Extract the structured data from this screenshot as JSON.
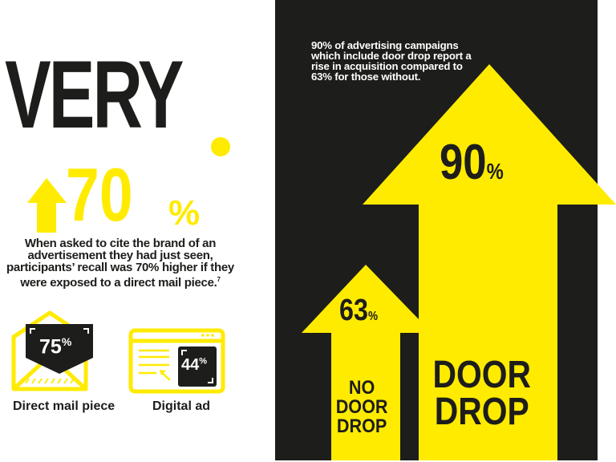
{
  "headline": "VERY",
  "colors": {
    "yellow": "#ffeb00",
    "dark": "#1d1d1b",
    "white": "#ffffff"
  },
  "recall_stat": {
    "value": "70",
    "unit": "%",
    "icon": "arrow-up-icon",
    "description": "When asked to cite the brand of an advertisement they had just seen, participants’ recall was 70% higher if they were exposed to a direct mail piece.",
    "footnote": "7"
  },
  "comparison": [
    {
      "icon": "envelope-icon",
      "value": "75",
      "unit": "%",
      "label": "Direct mail piece"
    },
    {
      "icon": "browser-window-icon",
      "value": "44",
      "unit": "%",
      "label": "Digital ad"
    }
  ],
  "door_drop": {
    "description": "90% of advertising campaigns which include door drop report a rise in acquisition compared to 63% for those without.",
    "with": {
      "value": "90",
      "unit": "%",
      "label_lines": [
        "DOOR",
        "DROP"
      ]
    },
    "without": {
      "value": "63",
      "unit": "%",
      "label_lines": [
        "NO",
        "DOOR",
        "DROP"
      ]
    }
  }
}
